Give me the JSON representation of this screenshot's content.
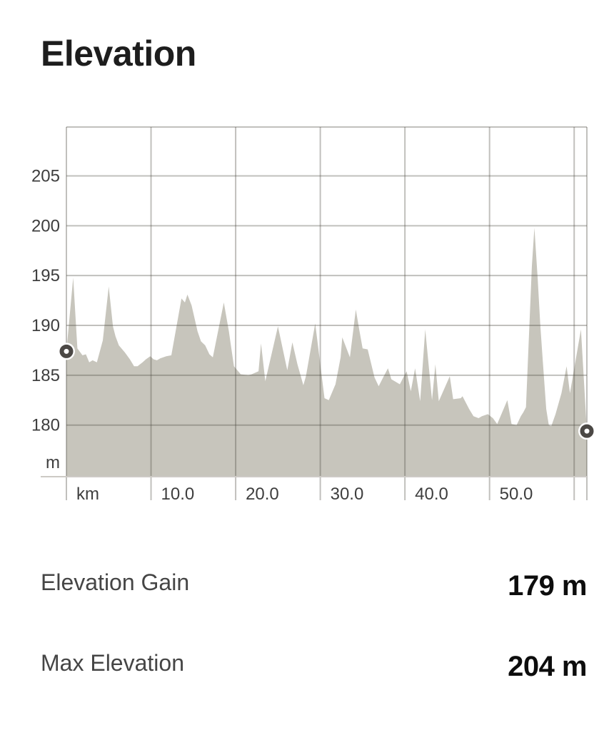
{
  "title": "Elevation",
  "chart_data": {
    "type": "area",
    "x_unit_label": "km",
    "y_unit_label": "m",
    "x_range": [
      0,
      61.5
    ],
    "y_range": [
      174.9,
      209.9
    ],
    "grid": true,
    "x_ticks": [
      {
        "v": 0,
        "label": "km"
      },
      {
        "v": 10,
        "label": "10.0"
      },
      {
        "v": 20,
        "label": "20.0"
      },
      {
        "v": 30,
        "label": "30.0"
      },
      {
        "v": 40,
        "label": "40.0"
      },
      {
        "v": 50,
        "label": "50.0"
      },
      {
        "v": 60,
        "label": ""
      }
    ],
    "y_ticks": [
      {
        "v": 205,
        "label": "205"
      },
      {
        "v": 200,
        "label": "200"
      },
      {
        "v": 195,
        "label": "195"
      },
      {
        "v": 190,
        "label": "190"
      },
      {
        "v": 185,
        "label": "185"
      },
      {
        "v": 180,
        "label": "180"
      }
    ],
    "colors": {
      "area_fill": "#c7c5bc",
      "grid_line": "rgba(73,70,63,0.34)",
      "axis_line": "#cdcac5",
      "tick_text": "#3e3e3e",
      "marker_ring": "#4b4845",
      "marker_halo": "#ffffff"
    },
    "markers": {
      "start": {
        "km": 0,
        "elevation_m": 187.4
      },
      "end": {
        "km": 61.5,
        "elevation_m": 179.4
      }
    },
    "profile": [
      [
        0,
        187.4
      ],
      [
        0.8,
        194.8
      ],
      [
        1.3,
        187.7
      ],
      [
        1.9,
        187.0
      ],
      [
        2.3,
        187.1
      ],
      [
        2.7,
        186.3
      ],
      [
        3.1,
        186.5
      ],
      [
        3.6,
        186.3
      ],
      [
        4.3,
        188.5
      ],
      [
        5.0,
        193.9
      ],
      [
        5.5,
        189.9
      ],
      [
        5.8,
        188.9
      ],
      [
        6.2,
        188.0
      ],
      [
        6.9,
        187.3
      ],
      [
        7.5,
        186.6
      ],
      [
        8.0,
        185.9
      ],
      [
        8.4,
        185.9
      ],
      [
        9.0,
        186.3
      ],
      [
        9.4,
        186.6
      ],
      [
        9.9,
        186.9
      ],
      [
        10.3,
        186.6
      ],
      [
        10.7,
        186.5
      ],
      [
        11.1,
        186.7
      ],
      [
        11.8,
        186.9
      ],
      [
        12.4,
        187.0
      ],
      [
        13.6,
        192.7
      ],
      [
        14.0,
        192.3
      ],
      [
        14.3,
        193.1
      ],
      [
        14.8,
        192.0
      ],
      [
        15.5,
        189.4
      ],
      [
        15.9,
        188.4
      ],
      [
        16.4,
        188.0
      ],
      [
        16.9,
        187.1
      ],
      [
        17.3,
        186.8
      ],
      [
        18.6,
        192.3
      ],
      [
        19.2,
        189.4
      ],
      [
        19.4,
        188.2
      ],
      [
        19.8,
        185.9
      ],
      [
        20.6,
        185.1
      ],
      [
        21.5,
        185.0
      ],
      [
        21.9,
        185.1
      ],
      [
        22.7,
        185.4
      ],
      [
        23.0,
        188.2
      ],
      [
        23.5,
        184.4
      ],
      [
        25.0,
        189.9
      ],
      [
        26.1,
        185.5
      ],
      [
        26.7,
        188.3
      ],
      [
        27.3,
        186.1
      ],
      [
        28.0,
        184.0
      ],
      [
        28.3,
        184.9
      ],
      [
        29.4,
        190.2
      ],
      [
        30.5,
        182.7
      ],
      [
        31.0,
        182.5
      ],
      [
        31.8,
        184.1
      ],
      [
        32.4,
        186.8
      ],
      [
        32.6,
        188.8
      ],
      [
        33.5,
        186.8
      ],
      [
        34.2,
        191.6
      ],
      [
        34.6,
        189.6
      ],
      [
        35.0,
        187.7
      ],
      [
        35.6,
        187.6
      ],
      [
        36.4,
        184.8
      ],
      [
        36.9,
        183.9
      ],
      [
        37.5,
        184.9
      ],
      [
        38.0,
        185.7
      ],
      [
        38.4,
        184.6
      ],
      [
        39.4,
        184.1
      ],
      [
        40.2,
        185.4
      ],
      [
        40.7,
        183.4
      ],
      [
        41.2,
        185.7
      ],
      [
        41.8,
        182.4
      ],
      [
        42.4,
        189.6
      ],
      [
        43.2,
        182.5
      ],
      [
        43.6,
        186.1
      ],
      [
        44.0,
        182.4
      ],
      [
        45.3,
        184.9
      ],
      [
        45.7,
        182.6
      ],
      [
        46.6,
        182.7
      ],
      [
        46.8,
        182.9
      ],
      [
        47.6,
        181.6
      ],
      [
        48.1,
        180.9
      ],
      [
        48.7,
        180.7
      ],
      [
        49.1,
        180.9
      ],
      [
        49.8,
        181.1
      ],
      [
        50.4,
        180.7
      ],
      [
        50.9,
        180.1
      ],
      [
        52.1,
        182.5
      ],
      [
        52.6,
        180.1
      ],
      [
        53.2,
        180.0
      ],
      [
        53.7,
        180.9
      ],
      [
        54.0,
        181.3
      ],
      [
        54.3,
        181.8
      ],
      [
        55.0,
        196.0
      ],
      [
        55.3,
        199.8
      ],
      [
        55.7,
        194.6
      ],
      [
        56.0,
        190.0
      ],
      [
        56.3,
        186.3
      ],
      [
        56.7,
        181.6
      ],
      [
        57.0,
        180.0
      ],
      [
        57.3,
        179.9
      ],
      [
        57.8,
        181.1
      ],
      [
        58.5,
        183.2
      ],
      [
        59.1,
        185.9
      ],
      [
        59.5,
        183.2
      ],
      [
        60.8,
        189.6
      ],
      [
        61.5,
        179.4
      ]
    ]
  },
  "stats": [
    {
      "label": "Elevation Gain",
      "value": "179 m"
    },
    {
      "label": "Max Elevation",
      "value": "204 m"
    }
  ]
}
